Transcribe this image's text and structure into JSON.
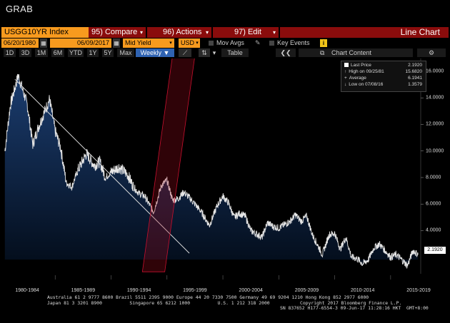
{
  "app": {
    "title": "GRAB"
  },
  "toolbar": {
    "ticker": "USGG10YR Index",
    "compare_num": "95)",
    "compare_label": "Compare",
    "actions_num": "96)",
    "actions_label": "Actions",
    "edit_num": "97)",
    "edit_label": "Edit",
    "view_label": "Line Chart"
  },
  "controls": {
    "start_date": "06/20/1980",
    "end_date": "06/09/2017",
    "field": "Mid Yield",
    "currency": "USD",
    "mov_avgs": "Mov Avgs",
    "key_events": "Key Events",
    "periods": [
      "1D",
      "3D",
      "1M",
      "6M",
      "YTD",
      "1Y",
      "5Y",
      "Max"
    ],
    "frequency": "Weekly",
    "table_label": "Table",
    "chart_content_label": "Chart Content"
  },
  "legend": {
    "last_price_label": "Last Price",
    "last_price": "2.1920",
    "high_label": "High on 09/25/81",
    "high": "15.6820",
    "average_label": "Average",
    "average": "6.1941",
    "low_label": "Low on 07/08/16",
    "low": "1.3579"
  },
  "price_tag": "2.1920",
  "chart_data": {
    "type": "area",
    "title": "USGG10YR Index",
    "ylim": [
      1,
      17
    ],
    "y_ticks": [
      "16.0000",
      "14.0000",
      "12.0000",
      "10.0000",
      "8.0000",
      "6.0000",
      "4.0000"
    ],
    "x_tick_labels": [
      "1980-1984",
      "1985-1989",
      "1990-1994",
      "1995-1999",
      "2000-2004",
      "2005-2009",
      "2010-2014",
      "2015-2019"
    ],
    "x": [
      1980.5,
      1981.0,
      1981.7,
      1982.5,
      1983.0,
      1983.5,
      1984.5,
      1985.0,
      1985.5,
      1986.0,
      1986.5,
      1987.0,
      1987.8,
      1988.5,
      1989.0,
      1989.5,
      1990.0,
      1990.7,
      1991.5,
      1992.0,
      1992.5,
      1993.0,
      1993.8,
      1994.5,
      1995.0,
      1995.5,
      1996.0,
      1996.5,
      1997.0,
      1998.0,
      1998.8,
      1999.5,
      2000.0,
      2000.5,
      2001.0,
      2001.5,
      2002.0,
      2002.5,
      2003.5,
      2004.0,
      2004.5,
      2005.0,
      2006.0,
      2006.5,
      2007.0,
      2007.5,
      2008.0,
      2008.9,
      2009.5,
      2010.0,
      2010.5,
      2011.0,
      2011.5,
      2012.0,
      2012.5,
      2013.0,
      2013.5,
      2014.0,
      2014.5,
      2015.0,
      2015.5,
      2016.0,
      2016.5,
      2017.0,
      2017.45
    ],
    "values": [
      10.0,
      13.5,
      15.68,
      13.5,
      10.5,
      11.8,
      13.9,
      11.5,
      10.2,
      7.6,
      7.3,
      8.5,
      9.8,
      8.9,
      9.2,
      8.0,
      8.4,
      8.8,
      8.2,
      7.3,
      6.8,
      6.6,
      5.4,
      7.4,
      7.8,
      6.3,
      6.4,
      6.9,
      6.5,
      5.5,
      4.4,
      5.9,
      6.6,
      6.1,
      5.0,
      5.3,
      5.1,
      4.0,
      3.5,
      4.6,
      4.3,
      4.2,
      4.7,
      5.2,
      4.7,
      5.1,
      3.7,
      2.2,
      3.7,
      3.8,
      2.6,
      3.5,
      2.0,
      1.9,
      1.5,
      1.8,
      2.7,
      3.0,
      2.5,
      2.0,
      2.2,
      1.8,
      1.36,
      2.5,
      2.19
    ],
    "high": {
      "value": 15.682,
      "date": "09/25/81"
    },
    "low": {
      "value": 1.3579,
      "date": "07/08/16"
    },
    "last": 2.192,
    "average": 6.1941
  },
  "footer": {
    "line1": "Australia 61 2 9777 8600 Brazil 5511 2395 9000 Europe 44 20 7330 7500 Germany 49 69 9204 1210 Hong Kong 852 2977 6000",
    "line2": "Japan 81 3 3201 8900          Singapore 65 6212 1000          U.S. 1 212 318 2000           Copyright 2017 Bloomberg Finance L.P.",
    "line3": "SN 837652 H177-6554-3 09-Jun-17 11:28:16 HKT  GMT+8:00"
  },
  "colors": {
    "orange": "#f79a1e",
    "dark_red": "#8a0c0c",
    "blue": "#2f63b2",
    "area_top": "#1a3c6e",
    "area_bottom": "#04101f",
    "channel": "#c8102e"
  }
}
